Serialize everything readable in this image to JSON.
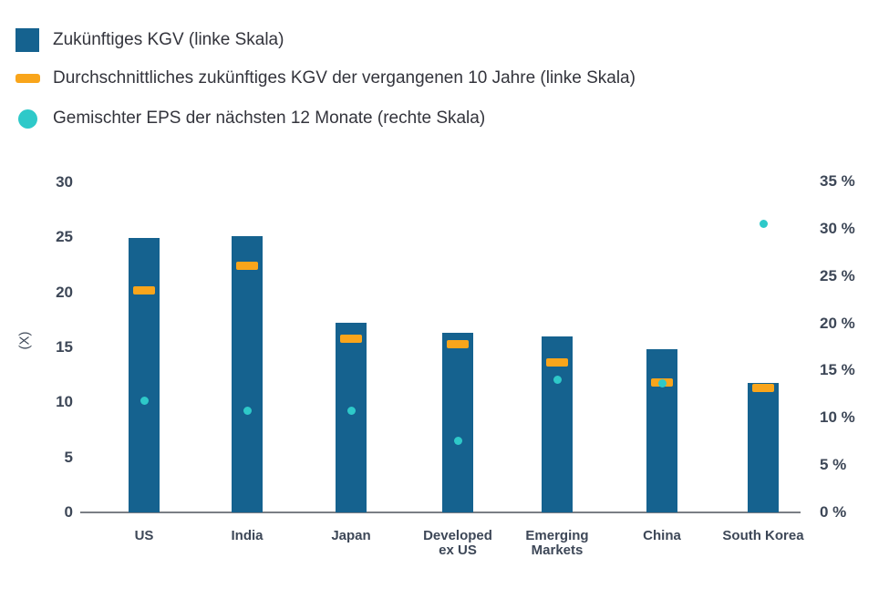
{
  "chart_data": {
    "type": "bar",
    "title": "",
    "legend": [
      {
        "label": "Zukünftiges KGV (linke Skala)",
        "marker": "square",
        "color": "#15628F"
      },
      {
        "label": "Durchschnittliches zukünftiges KGV der vergangenen 10 Jahre (linke Skala)",
        "marker": "dash",
        "color": "#F9A51B"
      },
      {
        "label": "Gemischter EPS der nächsten 12 Monate (rechte Skala)",
        "marker": "circle",
        "color": "#2EC9C9"
      }
    ],
    "categories": [
      "US",
      "India",
      "Japan",
      "Developed ex US",
      "Emerging Markets",
      "China",
      "South Korea"
    ],
    "categories_display": [
      "US",
      "India",
      "Japan",
      "Developed\nex US",
      "Emerging\nMarkets",
      "China",
      "South Korea"
    ],
    "series": [
      {
        "name": "Zukünftiges KGV",
        "axis": "left",
        "style": "bar",
        "values": [
          24.9,
          25.1,
          17.2,
          16.3,
          16.0,
          14.8,
          11.8
        ]
      },
      {
        "name": "Durchschnittliches zukünftiges KGV der vergangenen 10 Jahre",
        "axis": "left",
        "style": "dash",
        "values": [
          20.2,
          22.4,
          15.8,
          15.3,
          13.6,
          11.8,
          11.3
        ]
      },
      {
        "name": "Gemischter EPS der nächsten 12 Monate",
        "axis": "right",
        "style": "dot",
        "values": [
          11.8,
          10.8,
          10.8,
          7.6,
          14.0,
          13.6,
          30.5
        ]
      }
    ],
    "left_axis": {
      "label": "(X)",
      "tick_labels": [
        "0",
        "5",
        "10",
        "15",
        "20",
        "25",
        "30"
      ],
      "tick_values": [
        0,
        5,
        10,
        15,
        20,
        25,
        30
      ],
      "range": [
        0,
        30
      ]
    },
    "right_axis": {
      "tick_labels": [
        "0 %",
        "5 %",
        "10 %",
        "15 %",
        "20 %",
        "25 %",
        "30 %",
        "35 %"
      ],
      "tick_values": [
        0,
        5,
        10,
        15,
        20,
        25,
        30,
        35
      ],
      "range": [
        0,
        35
      ]
    },
    "grid": "off",
    "legend_position": "top-left",
    "colors": {
      "bar": "#15628F",
      "average_dash": "#F9A51B",
      "eps_dot": "#2EC9C9",
      "tick_text": "#3D4757",
      "legend_text": "#33343C",
      "axis_line": "#7A7E85",
      "background": "#FFFFFF"
    }
  }
}
